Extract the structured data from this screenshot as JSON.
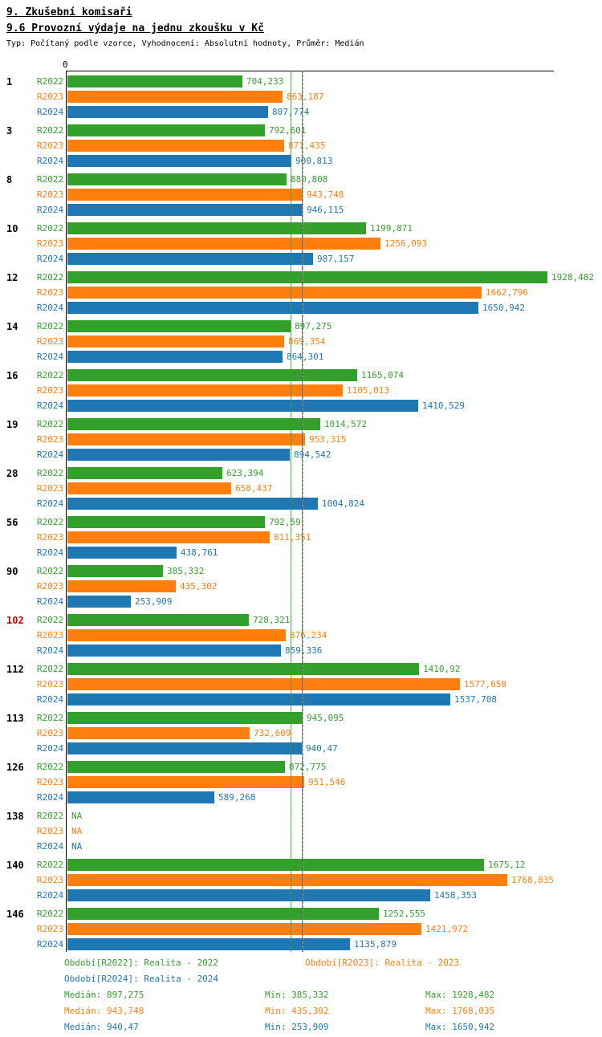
{
  "title": "9. Zkušební komisaři",
  "subtitle": "9.6 Provozní výdaje na jednu zkoušku v Kč",
  "meta": "Typ: Počítaný podle vzorce, Vyhodnocení: Absolutní hodnoty, Průměr: Medián",
  "colors": {
    "r2022": "#33a02c",
    "r2023": "#ff7f0e",
    "r2024": "#1f77b4",
    "highlight": "#cc0000"
  },
  "chart_data": {
    "type": "bar",
    "orientation": "horizontal",
    "title": "9.6 Provozní výdaje na jednu zkoušku v Kč",
    "xlabel": "Kč",
    "ylabel": "",
    "xlim": [
      0,
      1950
    ],
    "axis_zero_label": "0",
    "grid": false,
    "series": [
      "R2022",
      "R2023",
      "R2024"
    ],
    "series_colors": [
      "#33a02c",
      "#ff7f0e",
      "#1f77b4"
    ],
    "groups": [
      {
        "id": "1",
        "highlight": false,
        "values": [
          704.233,
          863.187,
          807.774
        ],
        "labels": [
          "704,233",
          "863,187",
          "807,774"
        ]
      },
      {
        "id": "3",
        "highlight": false,
        "values": [
          792.601,
          871.435,
          900.813
        ],
        "labels": [
          "792,601",
          "871,435",
          "900,813"
        ]
      },
      {
        "id": "8",
        "highlight": false,
        "values": [
          880.808,
          943.748,
          946.115
        ],
        "labels": [
          "880,808",
          "943,748",
          "946,115"
        ]
      },
      {
        "id": "10",
        "highlight": false,
        "values": [
          1199.871,
          1256.093,
          987.157
        ],
        "labels": [
          "1199,871",
          "1256,093",
          "987,157"
        ]
      },
      {
        "id": "12",
        "highlight": false,
        "values": [
          1928.482,
          1662.796,
          1650.942
        ],
        "labels": [
          "1928,482",
          "1662,796",
          "1650,942"
        ]
      },
      {
        "id": "14",
        "highlight": false,
        "values": [
          897.275,
          869.354,
          864.301
        ],
        "labels": [
          "897,275",
          "869,354",
          "864,301"
        ]
      },
      {
        "id": "16",
        "highlight": false,
        "values": [
          1165.074,
          1105.013,
          1410.529
        ],
        "labels": [
          "1165,074",
          "1105,013",
          "1410,529"
        ]
      },
      {
        "id": "19",
        "highlight": false,
        "values": [
          1014.572,
          953.315,
          894.542
        ],
        "labels": [
          "1014,572",
          "953,315",
          "894,542"
        ]
      },
      {
        "id": "28",
        "highlight": false,
        "values": [
          623.394,
          658.437,
          1004.824
        ],
        "labels": [
          "623,394",
          "658,437",
          "1004,824"
        ]
      },
      {
        "id": "56",
        "highlight": false,
        "values": [
          792.59,
          811.351,
          438.761
        ],
        "labels": [
          "792,59",
          "811,351",
          "438,761"
        ]
      },
      {
        "id": "90",
        "highlight": false,
        "values": [
          385.332,
          435.302,
          253.909
        ],
        "labels": [
          "385,332",
          "435,302",
          "253,909"
        ]
      },
      {
        "id": "102",
        "highlight": true,
        "values": [
          728.321,
          876.234,
          859.336
        ],
        "labels": [
          "728,321",
          "876,234",
          "859,336"
        ]
      },
      {
        "id": "112",
        "highlight": false,
        "values": [
          1410.92,
          1577.658,
          1537.708
        ],
        "labels": [
          "1410,92",
          "1577,658",
          "1537,708"
        ]
      },
      {
        "id": "113",
        "highlight": false,
        "values": [
          945.095,
          732.609,
          940.47
        ],
        "labels": [
          "945,095",
          "732,609",
          "940,47"
        ]
      },
      {
        "id": "126",
        "highlight": false,
        "values": [
          872.775,
          951.546,
          589.268
        ],
        "labels": [
          "872,775",
          "951,546",
          "589,268"
        ]
      },
      {
        "id": "138",
        "highlight": false,
        "values": [
          null,
          null,
          null
        ],
        "labels": [
          "NA",
          "NA",
          "NA"
        ]
      },
      {
        "id": "140",
        "highlight": false,
        "values": [
          1675.12,
          1768.035,
          1458.353
        ],
        "labels": [
          "1675,12",
          "1768,035",
          "1458,353"
        ]
      },
      {
        "id": "146",
        "highlight": false,
        "values": [
          1252.555,
          1421.972,
          1135.879
        ],
        "labels": [
          "1252,555",
          "1421,972",
          "1135,879"
        ]
      }
    ],
    "reference_lines": [
      {
        "name": "median-r2022",
        "value": 897.275,
        "color": "#33a02c",
        "style": "solid"
      },
      {
        "name": "median-r2023",
        "value": 943.748,
        "color": "#ff7f0e",
        "style": "dashed"
      },
      {
        "name": "median-r2024",
        "value": 940.47,
        "color": "#1f77b4",
        "style": "solid"
      }
    ]
  },
  "footer": {
    "legend": [
      {
        "label": "Období[R2022]: Realita - 2022",
        "color": "#33a02c"
      },
      {
        "label": "Období[R2023]: Realita - 2023",
        "color": "#ff7f0e"
      },
      {
        "label": "Období[R2024]: Realita - 2024",
        "color": "#1f77b4"
      }
    ],
    "stats": [
      {
        "median": "Medián: 897,275",
        "min": "Min: 385,332",
        "max": "Max: 1928,482",
        "color": "#33a02c"
      },
      {
        "median": "Medián: 943,748",
        "min": "Min: 435,302",
        "max": "Max: 1768,035",
        "color": "#ff7f0e"
      },
      {
        "median": "Medián: 940,47",
        "min": "Min: 253,909",
        "max": "Max: 1650,942",
        "color": "#1f77b4"
      }
    ]
  }
}
